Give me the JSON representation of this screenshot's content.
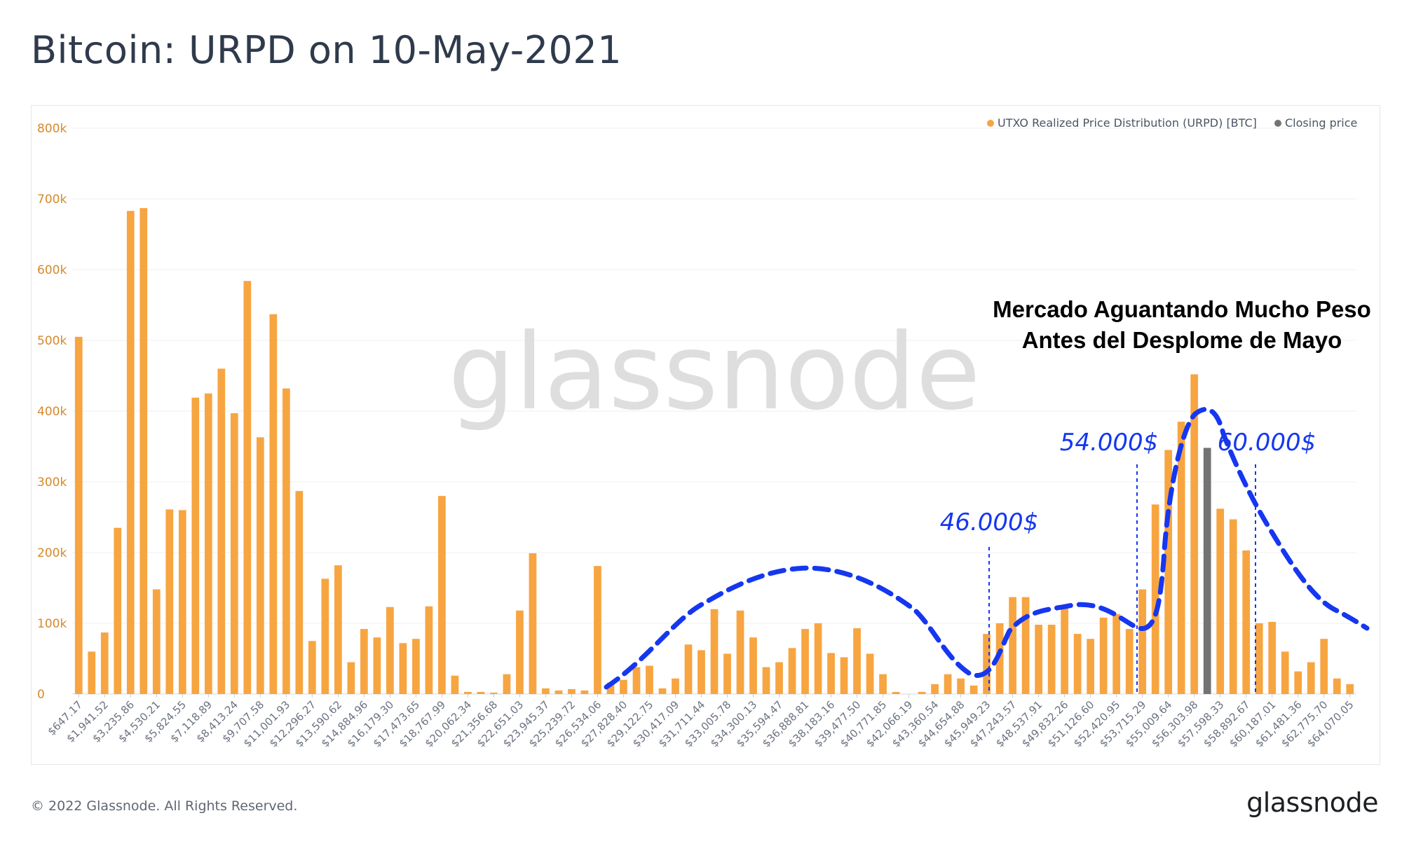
{
  "page": {
    "title": "Bitcoin: URPD on 10-May-2021",
    "footer_copyright": "© 2022 Glassnode. All Rights Reserved.",
    "footer_logo": "glassnode",
    "watermark": "glassnode"
  },
  "colors": {
    "urpd": "#f7a541",
    "closing": "#737373",
    "annotation": "#1537f0",
    "axis_text": "#d6892b",
    "tick_text": "#6b7280"
  },
  "annotations": {
    "heading_line1": "Mercado Aguantando Mucho Peso",
    "heading_line2": "Antes del Desplome de Mayo",
    "label_46k": "46.000$",
    "label_54k": "54.000$",
    "label_60k": "60.000$"
  },
  "chart_data": {
    "type": "bar",
    "legend": [
      {
        "name": "UTXO Realized Price Distribution (URPD) [BTC]",
        "color": "#f7a541"
      },
      {
        "name": "Closing price",
        "color": "#737373"
      }
    ],
    "legend_position": "top-right",
    "ylim": [
      0,
      800000
    ],
    "yticks": [
      "0",
      "100k",
      "200k",
      "300k",
      "400k",
      "500k",
      "600k",
      "700k",
      "800k"
    ],
    "grid": true,
    "tick_labels": [
      "$647.17",
      "$1,941.52",
      "$3,235.86",
      "$4,530.21",
      "$5,824.55",
      "$7,118.89",
      "$8,413.24",
      "$9,707.58",
      "$11,001.93",
      "$12,296.27",
      "$13,590.62",
      "$14,884.96",
      "$16,179.30",
      "$17,473.65",
      "$18,767.99",
      "$20,062.34",
      "$21,356.68",
      "$22,651.03",
      "$23,945.37",
      "$25,239.72",
      "$26,534.06",
      "$27,828.40",
      "$29,122.75",
      "$30,417.09",
      "$31,711.44",
      "$33,005.78",
      "$34,300.13",
      "$35,594.47",
      "$36,888.81",
      "$38,183.16",
      "$39,477.50",
      "$40,771.85",
      "$42,066.19",
      "$43,360.54",
      "$44,654.88",
      "$45,949.23",
      "$47,243.57",
      "$48,537.91",
      "$49,832.26",
      "$51,126.60",
      "$52,420.95",
      "$53,715.29",
      "$55,009.64",
      "$56,303.98",
      "$57,598.33",
      "$58,892.67",
      "$60,187.01",
      "$61,481.36",
      "$62,775.70",
      "$64,070.05"
    ],
    "closing_index": 87,
    "values": [
      505000,
      60000,
      87000,
      235000,
      683000,
      687000,
      148000,
      261000,
      260000,
      419000,
      425000,
      460000,
      397000,
      584000,
      363000,
      537000,
      432000,
      287000,
      75000,
      163000,
      182000,
      45000,
      92000,
      80000,
      123000,
      72000,
      78000,
      124000,
      280000,
      26000,
      3000,
      3000,
      2000,
      28000,
      118000,
      199000,
      8000,
      5000,
      7000,
      5000,
      181000,
      16000,
      20000,
      38000,
      40000,
      8000,
      22000,
      70000,
      62000,
      120000,
      57000,
      118000,
      80000,
      38000,
      45000,
      65000,
      92000,
      100000,
      58000,
      52000,
      93000,
      57000,
      28000,
      3000,
      0,
      3000,
      14000,
      28000,
      22000,
      12000,
      85000,
      100000,
      137000,
      137000,
      98000,
      98000,
      122000,
      85000,
      78000,
      108000,
      113000,
      92000,
      148000,
      268000,
      345000,
      385000,
      452000,
      348000,
      262000,
      247000,
      203000,
      100000,
      102000,
      60000,
      32000,
      45000,
      78000,
      22000,
      14000
    ]
  }
}
